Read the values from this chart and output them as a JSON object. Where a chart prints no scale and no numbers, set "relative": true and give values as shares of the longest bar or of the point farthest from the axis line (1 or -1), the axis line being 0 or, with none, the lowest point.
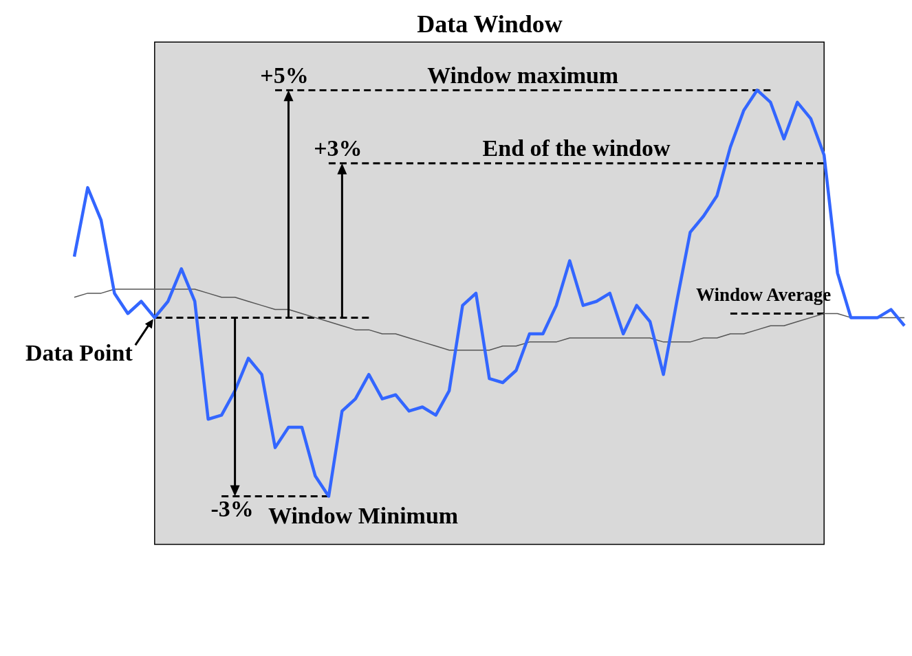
{
  "chart_data": {
    "type": "line",
    "title": "Data Window",
    "relative": true,
    "categories": [
      null,
      null,
      null,
      null,
      null,
      null,
      null,
      null,
      null,
      null,
      null,
      null,
      null,
      null,
      null,
      null,
      null,
      null,
      null,
      null,
      null,
      null,
      null,
      null,
      null,
      null,
      null,
      null,
      null,
      null,
      null,
      null,
      null,
      null,
      null,
      null,
      null,
      null,
      null,
      null,
      null,
      null,
      null,
      null,
      null,
      null,
      null,
      null,
      null,
      null,
      null,
      null,
      null,
      null,
      null,
      null,
      null,
      null,
      null,
      null,
      null,
      null,
      null
    ],
    "grid": false,
    "legend": false,
    "marker": "none",
    "series": [
      {
        "color": "#3366ff",
        "line_style": "solid",
        "values": [
          0.59,
          0.76,
          0.68,
          0.5,
          0.45,
          0.48,
          0.44,
          0.48,
          0.56,
          0.48,
          0.19,
          0.2,
          0.26,
          0.34,
          0.3,
          0.12,
          0.17,
          0.17,
          0.05,
          0,
          0.21,
          0.24,
          0.3,
          0.24,
          0.25,
          0.21,
          0.22,
          0.2,
          0.26,
          0.47,
          0.5,
          0.29,
          0.28,
          0.31,
          0.4,
          0.4,
          0.47,
          0.58,
          0.47,
          0.48,
          0.5,
          0.4,
          0.47,
          0.43,
          0.3,
          0.48,
          0.65,
          0.69,
          0.74,
          0.86,
          0.95,
          1,
          0.97,
          0.88,
          0.97,
          0.93,
          0.84,
          0.55,
          0.44,
          0.44,
          0.44,
          0.46,
          0.42
        ]
      },
      {
        "color": "#555555",
        "line_style": "solid",
        "values": [
          0.49,
          0.5,
          0.5,
          0.51,
          0.51,
          0.51,
          0.51,
          0.51,
          0.51,
          0.51,
          0.5,
          0.49,
          0.49,
          0.48,
          0.47,
          0.46,
          0.46,
          0.45,
          0.44,
          0.43,
          0.42,
          0.41,
          0.41,
          0.4,
          0.4,
          0.39,
          0.38,
          0.37,
          0.36,
          0.36,
          0.36,
          0.36,
          0.37,
          0.37,
          0.38,
          0.38,
          0.38,
          0.39,
          0.39,
          0.39,
          0.39,
          0.39,
          0.39,
          0.39,
          0.38,
          0.38,
          0.38,
          0.39,
          0.39,
          0.4,
          0.4,
          0.41,
          0.42,
          0.42,
          0.43,
          0.44,
          0.45,
          0.45,
          0.44,
          0.44,
          0.44,
          0.44,
          0.44
        ]
      },
      {
        "color": "#000000",
        "line_style": "dashed",
        "values": [
          null,
          null,
          null,
          null,
          null,
          null,
          0.44,
          0.44,
          0.44,
          0.44,
          0.44,
          0.44,
          0.44,
          0.44,
          0.44,
          0.44,
          0.44,
          0.44,
          0.44,
          0.44,
          0.44,
          0.44,
          0.44,
          null,
          null,
          null,
          null,
          null,
          null,
          null,
          null,
          null,
          null,
          null,
          null,
          null,
          null,
          null,
          null,
          null,
          null,
          null,
          null,
          null,
          null,
          null,
          null,
          null,
          null,
          null,
          null,
          null,
          null,
          null,
          null,
          null,
          null,
          null,
          null,
          null,
          null,
          null,
          null
        ]
      },
      {
        "name": "Window maximum",
        "color": "#000000",
        "line_style": "dashed",
        "values": [
          null,
          null,
          null,
          null,
          null,
          null,
          null,
          null,
          null,
          null,
          null,
          null,
          null,
          null,
          null,
          1,
          1,
          1,
          1,
          1,
          1,
          1,
          1,
          1,
          1,
          1,
          1,
          1,
          1,
          1,
          1,
          1,
          1,
          1,
          1,
          1,
          1,
          1,
          1,
          1,
          1,
          1,
          1,
          1,
          1,
          1,
          1,
          1,
          1,
          1,
          1,
          1,
          1,
          null,
          null,
          null,
          null,
          null,
          null,
          null,
          null,
          null,
          null
        ]
      },
      {
        "name": "End of the window",
        "color": "#000000",
        "line_style": "dashed",
        "values": [
          null,
          null,
          null,
          null,
          null,
          null,
          null,
          null,
          null,
          null,
          null,
          null,
          null,
          null,
          null,
          null,
          null,
          null,
          null,
          0.82,
          0.82,
          0.82,
          0.82,
          0.82,
          0.82,
          0.82,
          0.82,
          0.82,
          0.82,
          0.82,
          0.82,
          0.82,
          0.82,
          0.82,
          0.82,
          0.82,
          0.82,
          0.82,
          0.82,
          0.82,
          0.82,
          0.82,
          0.82,
          0.82,
          0.82,
          0.82,
          0.82,
          0.82,
          0.82,
          0.82,
          0.82,
          0.82,
          0.82,
          0.82,
          0.82,
          0.82,
          0.82,
          null,
          null,
          null,
          null,
          null,
          null
        ]
      },
      {
        "name": "Window Minimum",
        "color": "#000000",
        "line_style": "dashed",
        "values": [
          null,
          null,
          null,
          null,
          null,
          null,
          null,
          null,
          null,
          null,
          null,
          0,
          0,
          0,
          0,
          0,
          0,
          0,
          0,
          0,
          null,
          null,
          null,
          null,
          null,
          null,
          null,
          null,
          null,
          null,
          null,
          null,
          null,
          null,
          null,
          null,
          null,
          null,
          null,
          null,
          null,
          null,
          null,
          null,
          null,
          null,
          null,
          null,
          null,
          null,
          null,
          null,
          null,
          null,
          null,
          null,
          null,
          null,
          null,
          null,
          null,
          null,
          null
        ]
      },
      {
        "name": "Window Average",
        "color": "#000000",
        "line_style": "dashed",
        "values": [
          null,
          null,
          null,
          null,
          null,
          null,
          null,
          null,
          null,
          null,
          null,
          null,
          null,
          null,
          null,
          null,
          null,
          null,
          null,
          null,
          null,
          null,
          null,
          null,
          null,
          null,
          null,
          null,
          null,
          null,
          null,
          null,
          null,
          null,
          null,
          null,
          null,
          null,
          null,
          null,
          null,
          null,
          null,
          null,
          null,
          null,
          null,
          null,
          null,
          0.45,
          0.45,
          0.45,
          0.45,
          0.45,
          0.45,
          0.45,
          0.45,
          null,
          null,
          null,
          null,
          null,
          null
        ]
      }
    ],
    "annotations": [
      "+5%",
      "+3%",
      "-3%",
      "Data Point"
    ]
  }
}
